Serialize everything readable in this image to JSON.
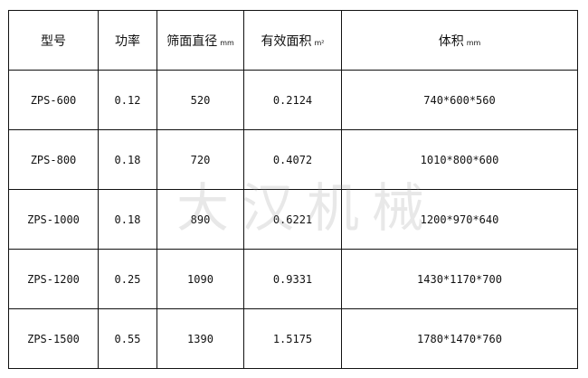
{
  "headers": [
    {
      "label": "型号",
      "unit": ""
    },
    {
      "label": "功率",
      "unit": ""
    },
    {
      "label": "筛面直径",
      "unit": "mm"
    },
    {
      "label": "有效面积",
      "unit": "m²"
    },
    {
      "label": "体积",
      "unit": "mm"
    }
  ],
  "rows": [
    [
      "ZPS-600",
      "0.12",
      "520",
      "0.2124",
      "740*600*560"
    ],
    [
      "ZPS-800",
      "0.18",
      "720",
      "0.4072",
      "1010*800*600"
    ],
    [
      "ZPS-1000",
      "0.18",
      "890",
      "0.6221",
      "1200*970*640"
    ],
    [
      "ZPS-1200",
      "0.25",
      "1090",
      "0.9331",
      "1430*1170*700"
    ],
    [
      "ZPS-1500",
      "0.55",
      "1390",
      "1.5175",
      "1780*1470*760"
    ]
  ],
  "watermark": "大汉机械"
}
